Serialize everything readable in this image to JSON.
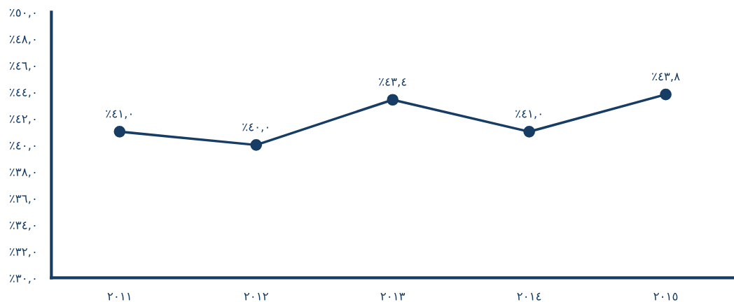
{
  "chart_data": {
    "type": "line",
    "categories": [
      "٢٠١١",
      "٢٠١٢",
      "٢٠١٣",
      "٢٠١٤",
      "٢٠١٥"
    ],
    "series": [
      {
        "color": "#173d64",
        "values": [
          41.0,
          40.0,
          43.4,
          41.0,
          43.8
        ],
        "value_labels": [
          "٪٤١,٠",
          "٪٤٠,٠",
          "٪٤٣,٤",
          "٪٤١,٠",
          "٪٤٣,٨"
        ]
      }
    ],
    "ylim": [
      30,
      50
    ],
    "yticks": [
      {
        "value": 30,
        "label": "٪٣٠,٠"
      },
      {
        "value": 32,
        "label": "٪٣٢,٠"
      },
      {
        "value": 34,
        "label": "٪٣٤,٠"
      },
      {
        "value": 36,
        "label": "٪٣٦,٠"
      },
      {
        "value": 38,
        "label": "٪٣٨,٠"
      },
      {
        "value": 40,
        "label": "٪٤٠,٠"
      },
      {
        "value": 42,
        "label": "٪٤٢,٠"
      },
      {
        "value": 44,
        "label": "٪٤٤,٠"
      },
      {
        "value": 46,
        "label": "٪٤٦,٠"
      },
      {
        "value": 48,
        "label": "٪٤٨,٠"
      },
      {
        "value": 50,
        "label": "٪٥٠,٠"
      }
    ],
    "marker": "circle",
    "line_style": "solid",
    "grid": false,
    "legend": false
  }
}
